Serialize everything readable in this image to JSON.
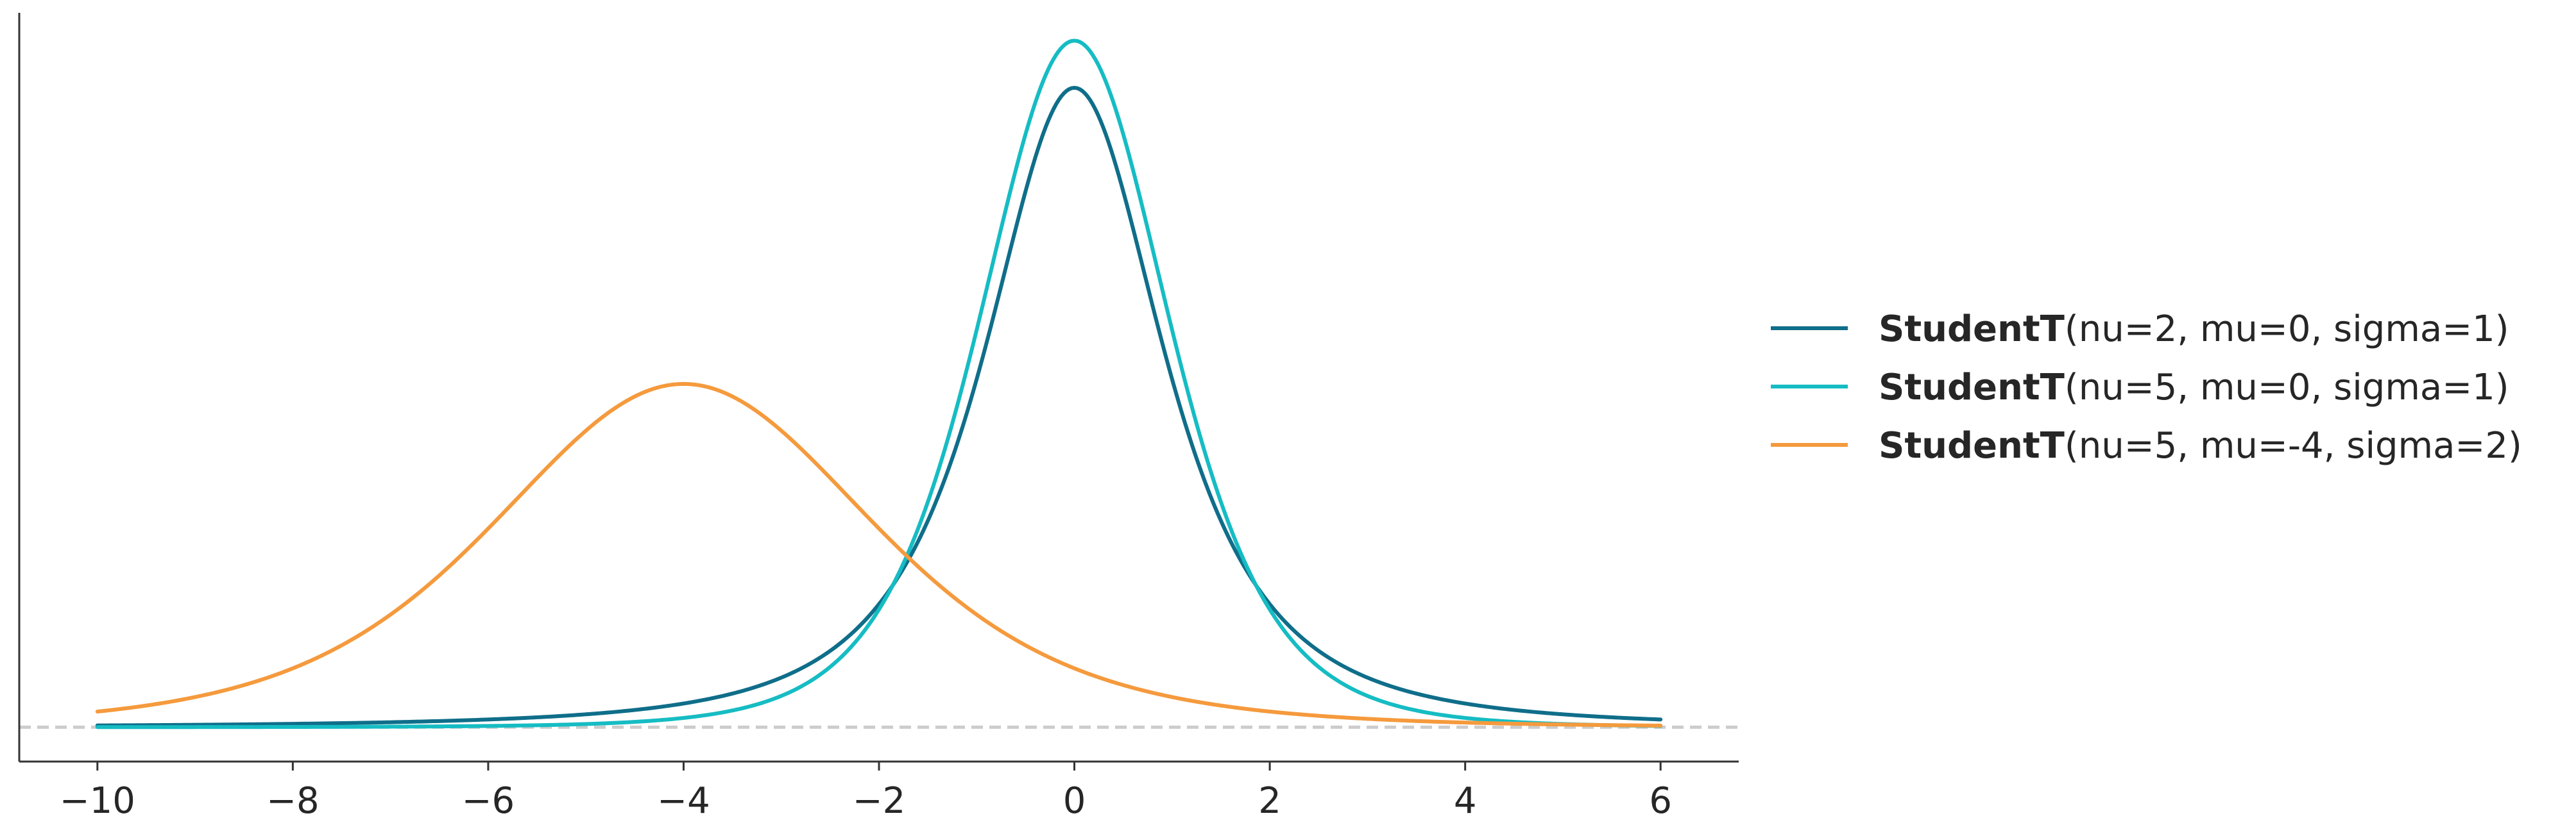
{
  "chart_data": {
    "type": "line",
    "title": "",
    "xlabel": "",
    "ylabel": "",
    "xlim": [
      -10.8,
      6.8
    ],
    "ylim": [
      -0.019,
      0.395
    ],
    "x_ticks": [
      -10,
      -8,
      -6,
      -4,
      -2,
      0,
      2,
      4,
      6
    ],
    "x_tick_labels": [
      "−10",
      "−8",
      "−6",
      "−4",
      "−2",
      "0",
      "2",
      "4",
      "6"
    ],
    "y_ticks_visible": false,
    "baseline": {
      "y": 0,
      "style": "dashed",
      "color": "#cccccc"
    },
    "grid": false,
    "legend_position": "right",
    "x_domain": [
      -10,
      6
    ],
    "series": [
      {
        "name": "StudentT",
        "name_params": "(nu=2, mu=0, sigma=1)",
        "color": "#0f6e8a",
        "dist": {
          "nu": 2,
          "mu": 0,
          "sigma": 1
        },
        "x": [
          -10,
          -8,
          -6,
          -4,
          -3,
          -2,
          -1.5,
          -1,
          -0.5,
          0,
          0.5,
          1,
          1.5,
          2,
          3,
          4,
          6
        ],
        "y": [
          0.001,
          0.0019,
          0.0041,
          0.0131,
          0.0275,
          0.068,
          0.114,
          0.1925,
          0.298,
          0.3536,
          0.298,
          0.1925,
          0.114,
          0.068,
          0.0275,
          0.0131,
          0.0041
        ]
      },
      {
        "name": "StudentT",
        "name_params": "(nu=5, mu=0, sigma=1)",
        "color": "#16bcc3",
        "dist": {
          "nu": 5,
          "mu": 0,
          "sigma": 1
        },
        "x": [
          -10,
          -8,
          -6,
          -4,
          -3,
          -2,
          -1.5,
          -1,
          -0.5,
          0,
          0.5,
          1,
          1.5,
          2,
          3,
          4,
          6
        ],
        "y": [
          0.0,
          0.0001,
          0.0004,
          0.0051,
          0.0173,
          0.0651,
          0.1245,
          0.2197,
          0.3279,
          0.3796,
          0.3279,
          0.2197,
          0.1245,
          0.0651,
          0.0173,
          0.0051,
          0.0004
        ]
      },
      {
        "name": "StudentT",
        "name_params": "(nu=5, mu=-4, sigma=2)",
        "color": "#f59a3d",
        "dist": {
          "nu": 5,
          "mu": -4,
          "sigma": 2
        },
        "x": [
          -10,
          -8,
          -6,
          -5,
          -4,
          -3,
          -2,
          0,
          2,
          4,
          6
        ],
        "y": [
          0.0087,
          0.0325,
          0.1098,
          0.164,
          0.1898,
          0.164,
          0.1098,
          0.0325,
          0.0087,
          0.0025,
          0.0008
        ]
      }
    ]
  }
}
